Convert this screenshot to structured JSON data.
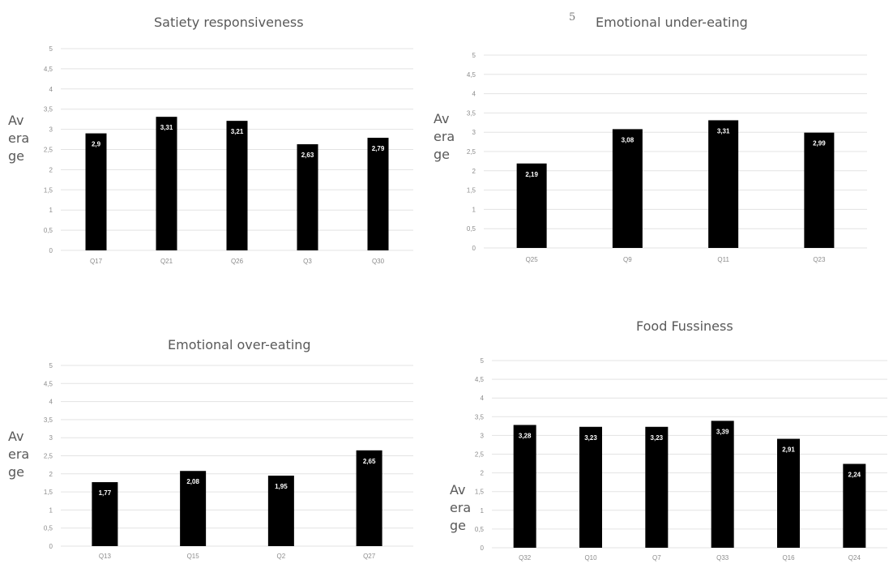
{
  "stray_mark": "5",
  "chart_data": [
    {
      "type": "bar",
      "title": "Satiety responsiveness",
      "ylabel": [
        "Av",
        "era",
        "ge"
      ],
      "xlabel": "",
      "ylim": [
        0,
        5
      ],
      "y_ticks": [
        "0",
        "0,5",
        "1",
        "1,5",
        "2",
        "2,5",
        "3",
        "3,5",
        "4",
        "4,5",
        "5"
      ],
      "grid": true,
      "categories": [
        "Q17",
        "Q21",
        "Q26",
        "Q3",
        "Q30"
      ],
      "values": [
        2.9,
        3.31,
        3.21,
        2.63,
        2.79
      ],
      "data_labels": [
        "2,9",
        "3,31",
        "3,21",
        "2,63",
        "2,79"
      ],
      "bar_color": "#000000"
    },
    {
      "type": "bar",
      "title": "Emotional under-eating",
      "ylabel": [
        "Av",
        "era",
        "ge"
      ],
      "xlabel": "",
      "ylim": [
        0,
        5
      ],
      "y_ticks": [
        "0",
        "0,5",
        "1",
        "1,5",
        "2",
        "2,5",
        "3",
        "3,5",
        "4",
        "4,5",
        "5"
      ],
      "grid": true,
      "categories": [
        "Q25",
        "Q9",
        "Q11",
        "Q23"
      ],
      "values": [
        2.19,
        3.08,
        3.31,
        2.99
      ],
      "data_labels": [
        "2,19",
        "3,08",
        "3,31",
        "2,99"
      ],
      "bar_color": "#000000"
    },
    {
      "type": "bar",
      "title": "Emotional over-eating",
      "ylabel": [
        "Av",
        "era",
        "ge"
      ],
      "xlabel": "",
      "ylim": [
        0,
        5
      ],
      "y_ticks": [
        "0",
        "0,5",
        "1",
        "1,5",
        "2",
        "2,5",
        "3",
        "3,5",
        "4",
        "4,5",
        "5"
      ],
      "grid": true,
      "categories": [
        "Q13",
        "Q15",
        "Q2",
        "Q27"
      ],
      "values": [
        1.77,
        2.08,
        1.95,
        2.65
      ],
      "data_labels": [
        "1,77",
        "2,08",
        "1,95",
        "2,65"
      ],
      "bar_color": "#000000"
    },
    {
      "type": "bar",
      "title": "Food Fussiness",
      "ylabel": [
        "Av",
        "era",
        "ge"
      ],
      "xlabel": "",
      "ylim": [
        0,
        5
      ],
      "y_ticks": [
        "0",
        "0,5",
        "1",
        "1,5",
        "2",
        "2,5",
        "3",
        "3,5",
        "4",
        "4,5",
        "5"
      ],
      "grid": true,
      "categories": [
        "Q32",
        "Q10",
        "Q7",
        "Q33",
        "Q16",
        "Q24"
      ],
      "values": [
        3.28,
        3.23,
        3.23,
        3.39,
        2.91,
        2.24
      ],
      "data_labels": [
        "3,28",
        "3,23",
        "3,23",
        "3,39",
        "2,91",
        "2,24"
      ],
      "bar_color": "#000000"
    }
  ]
}
